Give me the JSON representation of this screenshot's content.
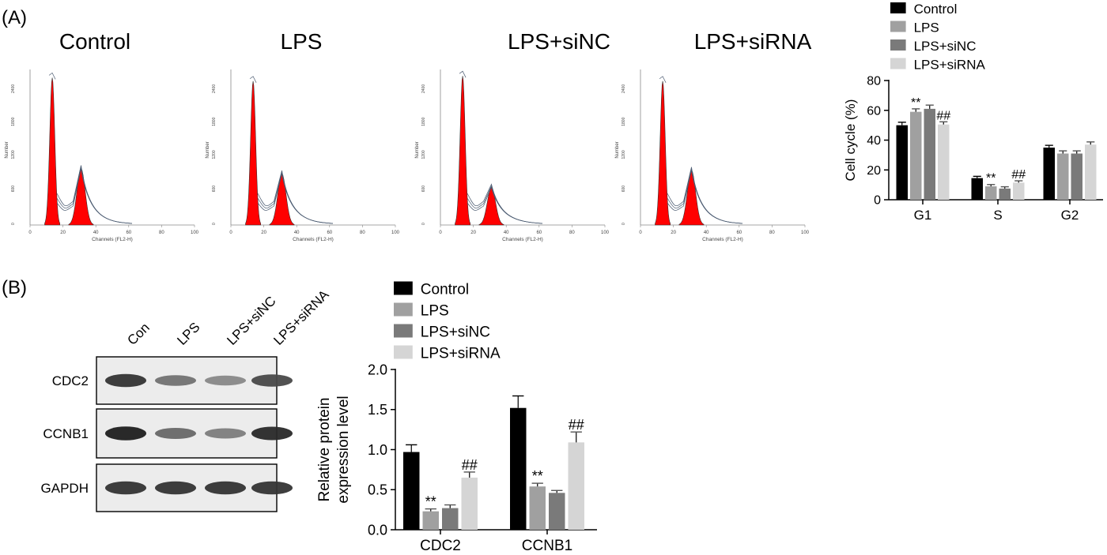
{
  "panel_labels": [
    "(A)",
    "(B)"
  ],
  "flow": {
    "titles": [
      "Control",
      "LPS",
      "LPS+siNC",
      "LPS+siRNA"
    ],
    "xlabel": "Channels (FL2-H)",
    "ylabel": "Number",
    "xticks": [
      "0",
      "20",
      "40",
      "60",
      "80",
      "100"
    ],
    "yticks": [
      "0",
      "600",
      "1200",
      "1800",
      "2400"
    ],
    "g1_peak_height": [
      0.86,
      0.84,
      0.87,
      0.84
    ],
    "g2_peak_height": [
      0.33,
      0.3,
      0.22,
      0.32
    ],
    "colors": {
      "fill": "#ff0000",
      "trace": "#4a5a70"
    }
  },
  "western": {
    "lanes": [
      "Con",
      "LPS",
      "LPS+siNC",
      "LPS+siRNA"
    ],
    "blots": [
      {
        "name": "CDC2",
        "intensity": [
          0.85,
          0.55,
          0.45,
          0.75
        ]
      },
      {
        "name": "CCNB1",
        "intensity": [
          0.95,
          0.6,
          0.5,
          0.9
        ]
      },
      {
        "name": "GAPDH",
        "intensity": [
          0.85,
          0.85,
          0.85,
          0.85
        ]
      }
    ]
  },
  "chart_data": [
    {
      "type": "bar",
      "categories": [
        "G1",
        "S",
        "G2"
      ],
      "ylabel": "Cell cycle (%)",
      "ylim": [
        0,
        80
      ],
      "yticks": [
        0,
        20,
        40,
        60,
        80
      ],
      "legend": "top",
      "series": [
        {
          "name": "Control",
          "color": "#000000",
          "values": [
            50,
            14.5,
            35
          ],
          "errors": [
            2,
            1.2,
            1.5
          ],
          "marks": [
            "",
            "",
            ""
          ]
        },
        {
          "name": "LPS",
          "color": "#a0a0a0",
          "values": [
            59,
            9,
            31
          ],
          "errors": [
            2,
            1.2,
            1.8
          ],
          "marks": [
            "**",
            "**",
            ""
          ]
        },
        {
          "name": "LPS+siNC",
          "color": "#7a7a7a",
          "values": [
            61,
            7.5,
            31
          ],
          "errors": [
            2.5,
            1.2,
            1.8
          ],
          "marks": [
            "",
            "",
            ""
          ]
        },
        {
          "name": "LPS+siRNA",
          "color": "#d5d5d5",
          "values": [
            50.5,
            11.5,
            37
          ],
          "errors": [
            1.8,
            1.2,
            1.8
          ],
          "marks": [
            "##",
            "##",
            ""
          ]
        }
      ]
    },
    {
      "type": "bar",
      "categories": [
        "CDC2",
        "CCNB1"
      ],
      "ylabel": [
        "Relative protein",
        "expression level"
      ],
      "ylim": [
        0,
        2.0
      ],
      "yticks": [
        "0.0",
        "0.5",
        "1.0",
        "1.5",
        "2.0"
      ],
      "legend": "top",
      "series": [
        {
          "name": "Control",
          "color": "#000000",
          "values": [
            0.97,
            1.52
          ],
          "errors": [
            0.09,
            0.15
          ],
          "marks": [
            "",
            ""
          ]
        },
        {
          "name": "LPS",
          "color": "#a0a0a0",
          "values": [
            0.23,
            0.54
          ],
          "errors": [
            0.03,
            0.04
          ],
          "marks": [
            "**",
            "**"
          ]
        },
        {
          "name": "LPS+siNC",
          "color": "#7a7a7a",
          "values": [
            0.27,
            0.46
          ],
          "errors": [
            0.04,
            0.03
          ],
          "marks": [
            "",
            ""
          ]
        },
        {
          "name": "LPS+siRNA",
          "color": "#d5d5d5",
          "values": [
            0.65,
            1.09
          ],
          "errors": [
            0.07,
            0.13
          ],
          "marks": [
            "##",
            "##"
          ]
        }
      ]
    }
  ]
}
